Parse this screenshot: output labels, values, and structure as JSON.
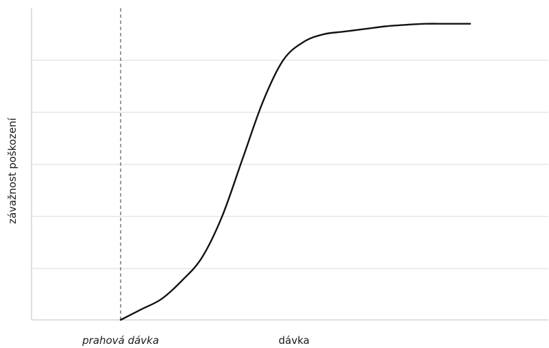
{
  "chart_data": {
    "type": "line",
    "title": "",
    "xlabel": "dávka",
    "ylabel": "závažnost poškození",
    "x_tick_labels": [],
    "y_tick_labels": [],
    "grid": true,
    "xlim": [
      0,
      10
    ],
    "ylim": [
      0,
      6
    ],
    "annotations": [
      {
        "type": "vertical-dashed-line",
        "x": 0,
        "label": "prahová dávka"
      }
    ],
    "series": [
      {
        "x": [
          0.0,
          0.5,
          1.0,
          1.5,
          2.0,
          2.5,
          3.0,
          3.5,
          4.0,
          4.5,
          5.0,
          5.5,
          6.0,
          6.5,
          7.0,
          7.5,
          8.0,
          8.6
        ],
        "values": [
          0.0,
          0.2,
          0.4,
          0.75,
          1.2,
          2.0,
          3.1,
          4.2,
          5.0,
          5.35,
          5.5,
          5.55,
          5.6,
          5.65,
          5.68,
          5.7,
          5.7,
          5.7
        ]
      }
    ]
  }
}
